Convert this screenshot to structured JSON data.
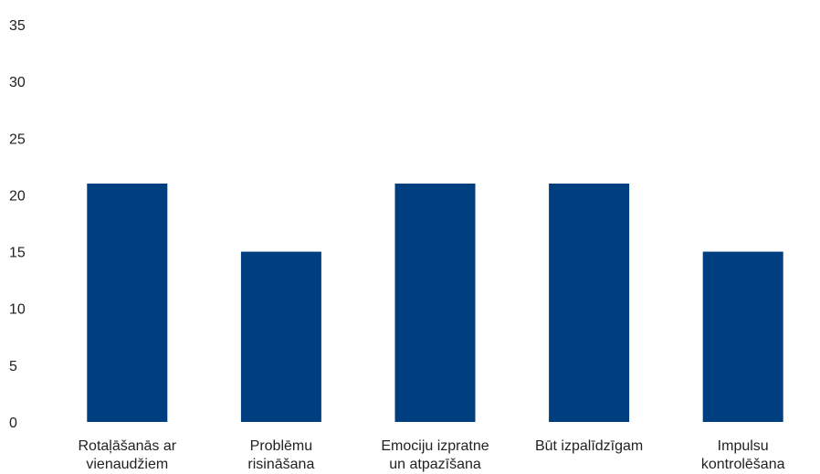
{
  "chart_data": {
    "type": "bar",
    "categories": [
      [
        "Rotaļāšanās ar",
        "vienaudžiem"
      ],
      [
        "Problēmu",
        "risināšana"
      ],
      [
        "Emociju izpratne",
        "un atpazīšana"
      ],
      [
        "Būt izpalīdzīgam"
      ],
      [
        "Impulsu",
        "kontrolēšana"
      ]
    ],
    "values": [
      21,
      15,
      21,
      21,
      15
    ],
    "title": "",
    "xlabel": "",
    "ylabel": "",
    "ylim": [
      0,
      35
    ],
    "yticks": [
      0,
      5,
      10,
      15,
      20,
      25,
      30,
      35
    ],
    "grid": false,
    "legend": "none",
    "bar_color": "#003f7f"
  }
}
